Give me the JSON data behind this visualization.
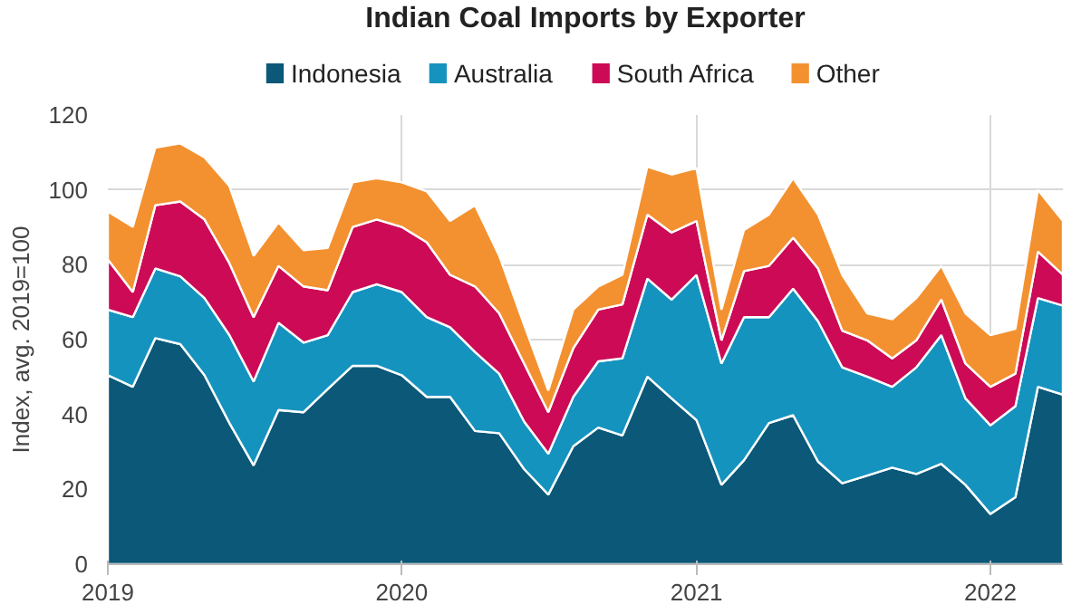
{
  "chart_data": {
    "type": "area",
    "stacked": true,
    "title": "Indian Coal Imports by Exporter",
    "ylabel": "Index, avg. 2019=100",
    "x": [
      "2019-01",
      "2019-02",
      "2019-03",
      "2019-04",
      "2019-05",
      "2019-06",
      "2019-07",
      "2019-08",
      "2019-09",
      "2019-10",
      "2019-11",
      "2019-12",
      "2020-01",
      "2020-02",
      "2020-03",
      "2020-04",
      "2020-05",
      "2020-06",
      "2020-07",
      "2020-08",
      "2020-09",
      "2020-10",
      "2020-11",
      "2020-12",
      "2021-01",
      "2021-02",
      "2021-03",
      "2021-04",
      "2021-05",
      "2021-06",
      "2021-07",
      "2021-08",
      "2021-09",
      "2021-10",
      "2021-11",
      "2021-12",
      "2022-01",
      "2022-02",
      "2022-03",
      "2022-04"
    ],
    "series": [
      {
        "name": "Indonesia",
        "color": "#0b5878",
        "values": [
          50.5,
          47.4,
          60.4,
          58.8,
          50.5,
          37.7,
          26.4,
          41.2,
          40.6,
          46.8,
          53,
          53,
          50.5,
          44.7,
          44.7,
          35.6,
          35,
          25.4,
          18.6,
          31.5,
          36.5,
          34.4,
          50.1,
          44.3,
          38.5,
          21.2,
          27.8,
          37.7,
          39.8,
          27.4,
          21.6,
          23.7,
          25.8,
          24.1,
          26.8,
          21.2,
          13.4,
          17.9,
          47.4,
          45.3
        ]
      },
      {
        "name": "Australia",
        "color": "#1593bf",
        "values": [
          17.5,
          18.6,
          18.6,
          18.1,
          20.6,
          23.5,
          22.4,
          23.3,
          18.6,
          14.4,
          19.7,
          21.8,
          22.2,
          21.3,
          18.6,
          21.1,
          15.9,
          12.7,
          10.9,
          13.2,
          17.7,
          20.6,
          26.2,
          26.4,
          38.8,
          32.4,
          38.2,
          28.3,
          33.8,
          37.5,
          31,
          26.4,
          21.6,
          28.5,
          34.4,
          23.1,
          23.7,
          24.3,
          23.7,
          23.8
        ]
      },
      {
        "name": "South Africa",
        "color": "#cc0a55",
        "values": [
          13.4,
          6.7,
          16.9,
          20,
          21,
          19.2,
          17.2,
          15.2,
          15,
          12,
          17.4,
          17.3,
          17.4,
          20,
          14,
          17.5,
          16.1,
          15.5,
          11.1,
          13,
          13.8,
          14.4,
          17.1,
          17.9,
          14.4,
          6.2,
          12.3,
          13.7,
          13.6,
          14.1,
          9.8,
          9.7,
          7.6,
          7.2,
          9.5,
          9.3,
          10.3,
          8.7,
          12.4,
          8.2
        ]
      },
      {
        "name": "Other",
        "color": "#f39130",
        "values": [
          12.8,
          17.4,
          15.4,
          15.5,
          16.6,
          20.6,
          16.4,
          11.6,
          9.7,
          11.3,
          11.9,
          11,
          11.9,
          13.6,
          14.4,
          21.7,
          15.4,
          10.3,
          5.8,
          10.3,
          6.2,
          7.9,
          12.8,
          15.5,
          14.1,
          8.2,
          11,
          13.7,
          15.9,
          14.4,
          14.9,
          7.2,
          10.4,
          11.3,
          9,
          13.4,
          13.8,
          12,
          16.5,
          14.4
        ]
      }
    ],
    "xlim": [
      "2019-01",
      "2022-04"
    ],
    "xticks": [
      {
        "value": "2019-01",
        "label": "2019"
      },
      {
        "value": "2020-01",
        "label": "2020"
      },
      {
        "value": "2021-01",
        "label": "2021"
      },
      {
        "value": "2022-01",
        "label": "2022"
      }
    ],
    "ylim": [
      0,
      120
    ],
    "yticks": [
      0,
      20,
      40,
      60,
      80,
      100,
      120
    ],
    "grid": true,
    "legend": "top"
  }
}
